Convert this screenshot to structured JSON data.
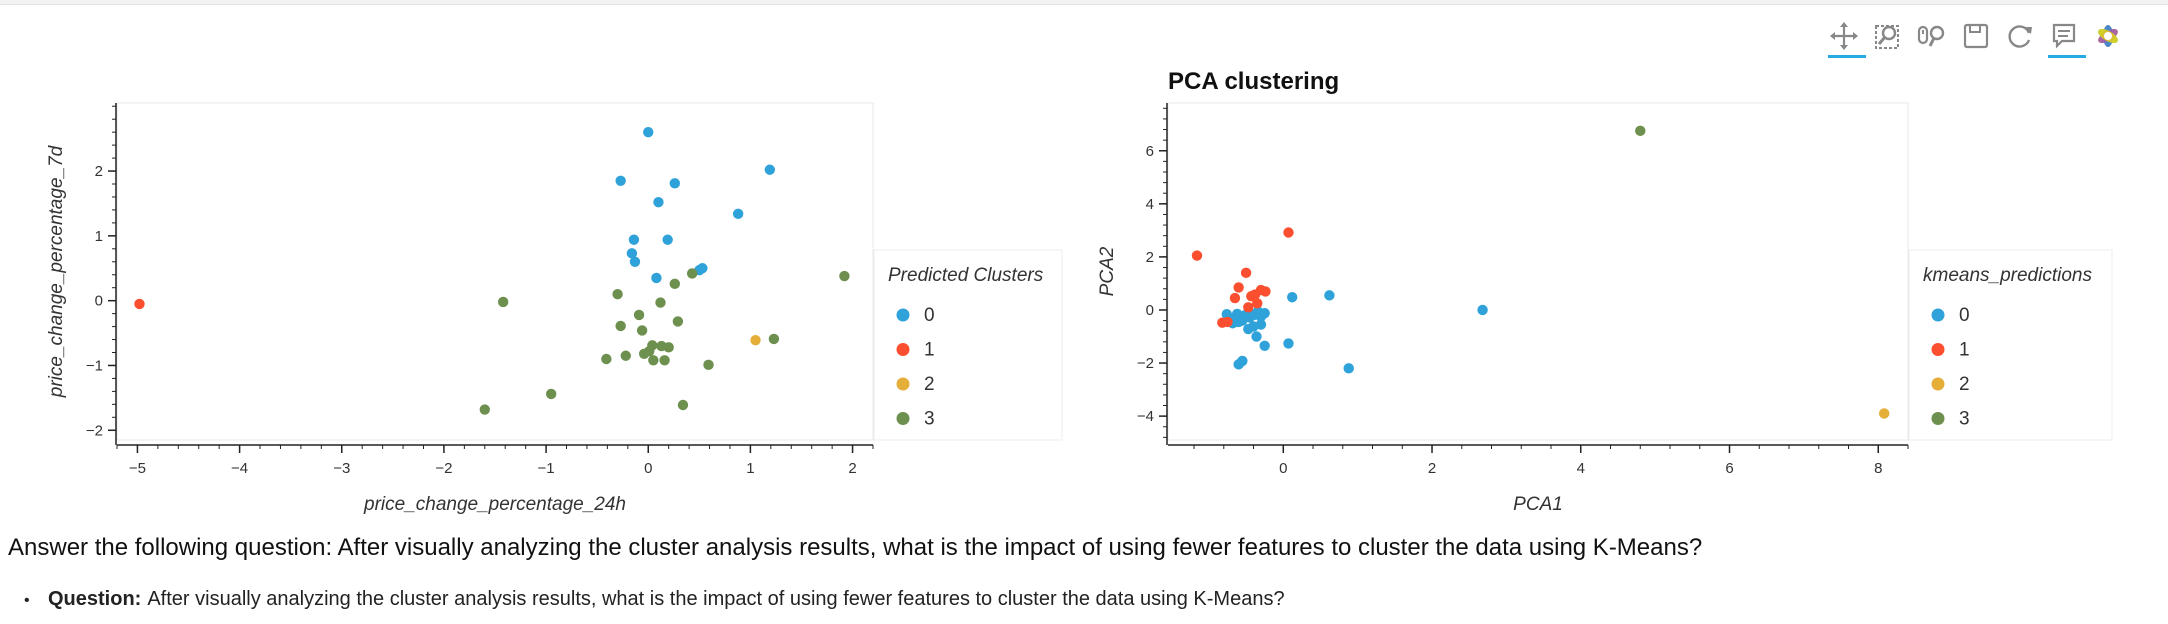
{
  "toolbar": {
    "tools": [
      {
        "name": "pan-tool-icon",
        "active": true
      },
      {
        "name": "box-zoom-tool-icon",
        "active": false
      },
      {
        "name": "wheel-zoom-tool-icon",
        "active": false
      },
      {
        "name": "save-tool-icon",
        "active": false
      },
      {
        "name": "reset-tool-icon",
        "active": false
      },
      {
        "name": "hover-tool-icon",
        "active": true
      },
      {
        "name": "bokeh-logo-icon",
        "active": false
      }
    ]
  },
  "colors": {
    "0": "#30a2da",
    "1": "#fc4f30",
    "2": "#e5ae38",
    "3": "#6d904f"
  },
  "chart_data": [
    {
      "type": "scatter",
      "title": "",
      "xlabel": "price_change_percentage_24h",
      "ylabel": "price_change_percentage_7d",
      "xlim": [
        -5.2,
        2.2
      ],
      "ylim": [
        -2.15,
        3.05
      ],
      "xticks": [
        -5,
        -4,
        -3,
        -2,
        -1,
        0,
        1,
        2
      ],
      "yticks": [
        -2,
        -1,
        0,
        1,
        2
      ],
      "grid": false,
      "legend_title": "Predicted Clusters",
      "legend_position": "right",
      "series": [
        {
          "name": "0",
          "points": [
            [
              0.0,
              2.6
            ],
            [
              -0.27,
              1.85
            ],
            [
              0.26,
              1.81
            ],
            [
              1.19,
              2.02
            ],
            [
              0.1,
              1.52
            ],
            [
              0.88,
              1.34
            ],
            [
              -0.14,
              0.94
            ],
            [
              0.19,
              0.94
            ],
            [
              -0.16,
              0.73
            ],
            [
              -0.13,
              0.6
            ],
            [
              0.5,
              0.47
            ],
            [
              0.53,
              0.5
            ],
            [
              0.08,
              0.35
            ]
          ]
        },
        {
          "name": "1",
          "points": [
            [
              -4.98,
              -0.05
            ]
          ]
        },
        {
          "name": "2",
          "points": [
            [
              1.05,
              -0.61
            ]
          ]
        },
        {
          "name": "3",
          "points": [
            [
              1.92,
              0.38
            ],
            [
              -1.42,
              -0.02
            ],
            [
              -0.3,
              0.1
            ],
            [
              0.12,
              -0.03
            ],
            [
              0.26,
              0.26
            ],
            [
              0.43,
              0.42
            ],
            [
              -0.09,
              -0.22
            ],
            [
              0.29,
              -0.32
            ],
            [
              -0.27,
              -0.39
            ],
            [
              -0.06,
              -0.46
            ],
            [
              1.23,
              -0.59
            ],
            [
              0.04,
              -0.69
            ],
            [
              0.13,
              -0.7
            ],
            [
              0.2,
              -0.72
            ],
            [
              0.01,
              -0.78
            ],
            [
              -0.04,
              -0.82
            ],
            [
              -0.22,
              -0.85
            ],
            [
              -0.41,
              -0.9
            ],
            [
              0.05,
              -0.92
            ],
            [
              0.16,
              -0.92
            ],
            [
              0.59,
              -0.99
            ],
            [
              -0.95,
              -1.44
            ],
            [
              0.34,
              -1.61
            ],
            [
              -1.6,
              -1.68
            ]
          ]
        }
      ]
    },
    {
      "type": "scatter",
      "title": "PCA clustering",
      "xlabel": "PCA1",
      "ylabel": "PCA2",
      "xlim": [
        -1.55,
        8.4
      ],
      "ylim": [
        -4.9,
        7.8
      ],
      "xticks": [
        0,
        2,
        4,
        6,
        8
      ],
      "yticks": [
        -4,
        -2,
        0,
        2,
        4,
        6
      ],
      "grid": false,
      "legend_title": "kmeans_predictions",
      "legend_position": "right",
      "series": [
        {
          "name": "0",
          "points": [
            [
              0.62,
              0.55
            ],
            [
              0.12,
              0.48
            ],
            [
              2.68,
              0.0
            ],
            [
              0.07,
              -1.26
            ],
            [
              0.88,
              -2.2
            ],
            [
              -0.6,
              -2.05
            ],
            [
              -0.55,
              -1.92
            ],
            [
              -0.36,
              -1.0
            ],
            [
              -0.25,
              -1.35
            ],
            [
              -0.47,
              -0.72
            ],
            [
              -0.4,
              -0.62
            ],
            [
              -0.3,
              -0.55
            ],
            [
              -0.72,
              -0.3
            ],
            [
              -0.62,
              -0.15
            ],
            [
              -0.52,
              -0.2
            ],
            [
              -0.45,
              -0.28
            ],
            [
              -0.38,
              -0.18
            ],
            [
              -0.3,
              -0.25
            ],
            [
              -0.25,
              -0.12
            ],
            [
              -0.6,
              -0.45
            ],
            [
              -0.68,
              -0.5
            ],
            [
              -0.55,
              -0.4
            ],
            [
              -0.44,
              -0.15
            ],
            [
              -0.34,
              -0.06
            ],
            [
              -0.76,
              -0.16
            ]
          ]
        },
        {
          "name": "1",
          "points": [
            [
              -1.16,
              2.05
            ],
            [
              0.07,
              2.92
            ],
            [
              -0.5,
              1.4
            ],
            [
              -0.6,
              0.85
            ],
            [
              -0.3,
              0.75
            ],
            [
              -0.24,
              0.7
            ],
            [
              -0.65,
              0.45
            ],
            [
              -0.43,
              0.52
            ],
            [
              -0.38,
              0.58
            ],
            [
              -0.35,
              0.25
            ],
            [
              -0.47,
              0.1
            ],
            [
              -0.75,
              -0.45
            ],
            [
              -0.82,
              -0.48
            ]
          ]
        },
        {
          "name": "2",
          "points": [
            [
              8.08,
              -3.9
            ]
          ]
        },
        {
          "name": "3",
          "points": [
            [
              4.8,
              6.75
            ]
          ]
        }
      ]
    }
  ],
  "question": {
    "main": "Answer the following question: After visually analyzing the cluster analysis results, what is the impact of using fewer features to cluster the data using K-Means?",
    "bullet_label": "Question:",
    "bullet_text": "After visually analyzing the cluster analysis results, what is the impact of using fewer features to cluster the data using K-Means?"
  }
}
